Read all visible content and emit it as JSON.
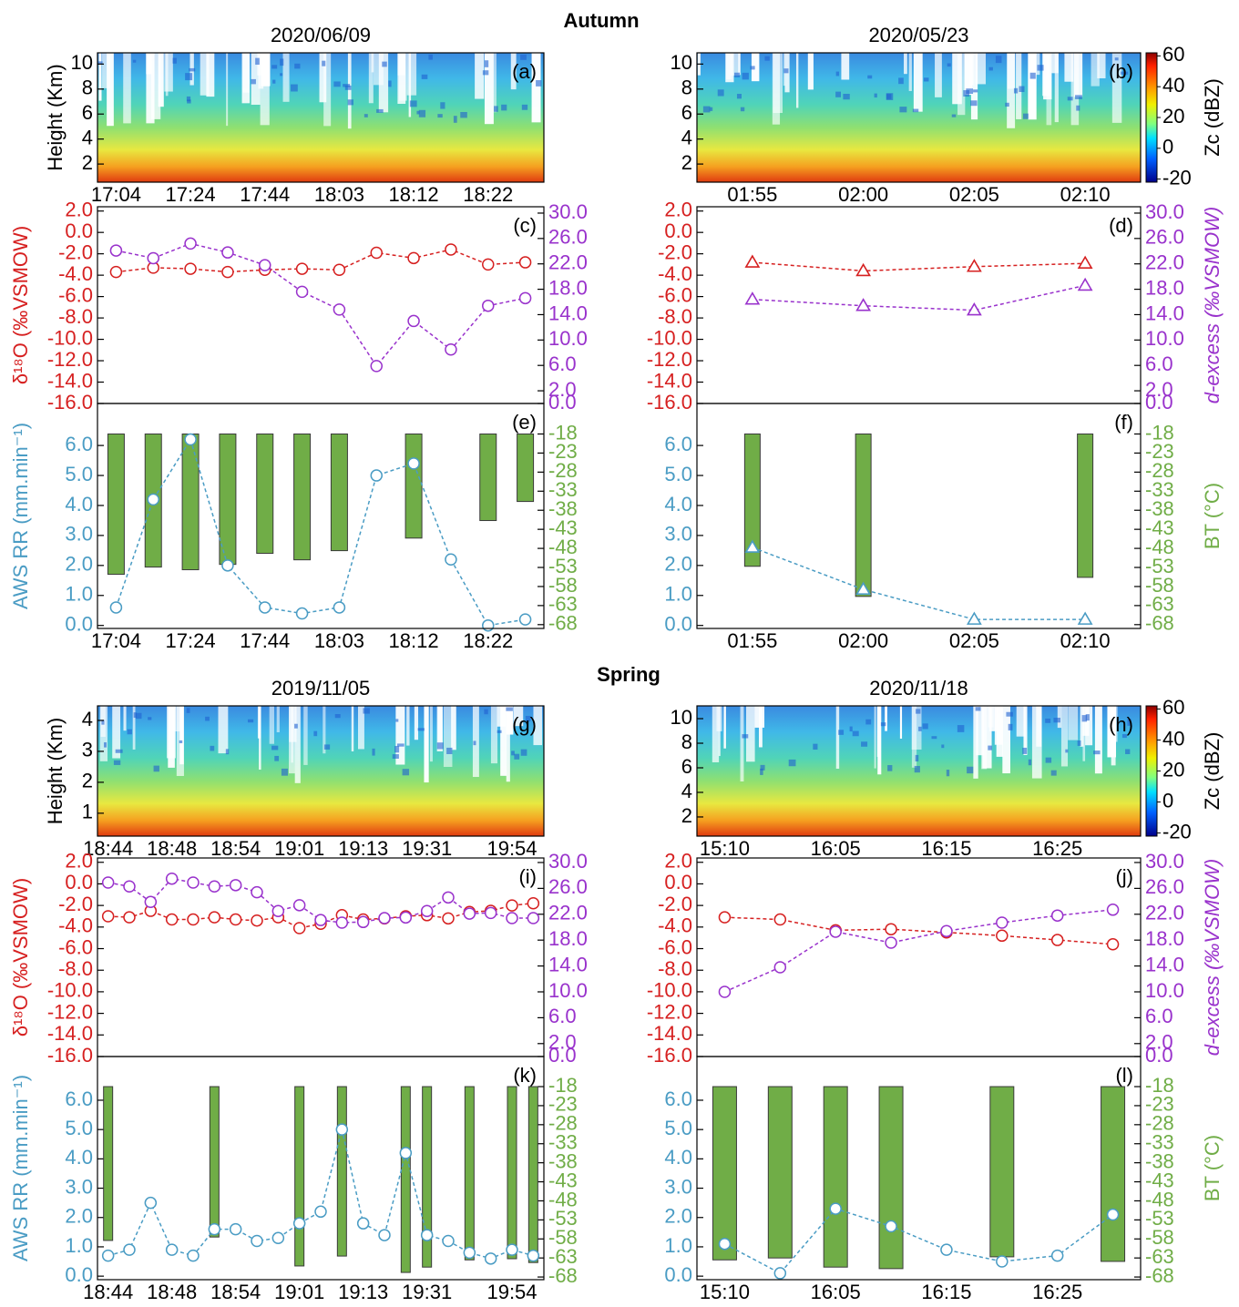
{
  "section_titles": [
    "Autumn",
    "Spring"
  ],
  "chart_data": [
    {
      "type": "radar",
      "panel": "(a)",
      "title": "2020/06/09",
      "y_label": "Height (Km)",
      "categories": [
        "17:04",
        null,
        "17:24",
        null,
        "17:44",
        null,
        "18:03",
        null,
        "18:12",
        null,
        "18:22",
        null
      ],
      "ylim": [
        0.55,
        10.9
      ],
      "yticks": [
        2,
        4,
        6,
        8,
        10
      ]
    },
    {
      "type": "radar",
      "panel": "(b)",
      "title": "2020/05/23",
      "categories": [
        "01:55",
        "02:00",
        "02:05",
        "02:10"
      ],
      "ylim": [
        0.55,
        10.9
      ],
      "yticks": [
        2,
        4,
        6,
        8,
        10
      ],
      "colorbar": {
        "label": "Zc (dBZ)",
        "lim": [
          -22,
          62
        ],
        "ticks": [
          60,
          40,
          20,
          0,
          -20
        ]
      }
    },
    {
      "type": "dual-line",
      "panel": "(c)",
      "y_label": "δ¹⁸O (‰VSMOW)",
      "ylim": [
        -16,
        2.4
      ],
      "yticks": [
        {
          "value": 2,
          "label": "2.0"
        },
        {
          "value": 0,
          "label": "0.0"
        },
        {
          "value": -2,
          "label": "-2.0"
        },
        {
          "value": -4,
          "label": "-4.0"
        },
        {
          "value": -6,
          "label": "-6.0"
        },
        {
          "value": -8,
          "label": "-8.0"
        },
        {
          "value": -10,
          "label": "-10.0"
        },
        {
          "value": -12,
          "label": "-12.0"
        },
        {
          "value": -14,
          "label": "-14.0"
        },
        {
          "value": -16,
          "label": "-16.0"
        }
      ],
      "y2lim": [
        0,
        31
      ],
      "y2ticks": [
        {
          "value": 30,
          "label": "30.0"
        },
        {
          "value": 26,
          "label": "26.0"
        },
        {
          "value": 22,
          "label": "22.0"
        },
        {
          "value": 18,
          "label": "18.0"
        },
        {
          "value": 14,
          "label": "14.0"
        },
        {
          "value": 10,
          "label": "10.0"
        },
        {
          "value": 6,
          "label": "6.0"
        },
        {
          "value": 2,
          "label": "2.0"
        },
        {
          "value": 0,
          "label": "0.0"
        }
      ],
      "series": [
        {
          "color": "#d62020",
          "marker": "circle",
          "values": [
            -3.7,
            -3.3,
            -3.4,
            -3.7,
            -3.5,
            -3.4,
            -3.5,
            -1.9,
            -2.4,
            -1.6,
            -3.0,
            -2.8
          ]
        },
        {
          "color": "#9932cc",
          "marker": "circle",
          "axis": "y2",
          "values": [
            24.1,
            22.9,
            25.2,
            23.8,
            21.8,
            17.6,
            14.8,
            5.9,
            13.0,
            8.5,
            15.4,
            16.6
          ]
        }
      ]
    },
    {
      "type": "dual-line",
      "panel": "(d)",
      "y2_label": "d-excess (‰VSMOW)",
      "ylim": [
        -16,
        2.4
      ],
      "yticks": [
        {
          "value": 2,
          "label": "2.0"
        },
        {
          "value": 0,
          "label": "0.0"
        },
        {
          "value": -2,
          "label": "-2.0"
        },
        {
          "value": -4,
          "label": "-4.0"
        },
        {
          "value": -6,
          "label": "-6.0"
        },
        {
          "value": -8,
          "label": "-8.0"
        },
        {
          "value": -10,
          "label": "-10.0"
        },
        {
          "value": -12,
          "label": "-12.0"
        },
        {
          "value": -14,
          "label": "-14.0"
        },
        {
          "value": -16,
          "label": "-16.0"
        }
      ],
      "y2lim": [
        0,
        31
      ],
      "y2ticks": [
        {
          "value": 30,
          "label": "30.0"
        },
        {
          "value": 26,
          "label": "26.0"
        },
        {
          "value": 22,
          "label": "22.0"
        },
        {
          "value": 18,
          "label": "18.0"
        },
        {
          "value": 14,
          "label": "14.0"
        },
        {
          "value": 10,
          "label": "10.0"
        },
        {
          "value": 6,
          "label": "6.0"
        },
        {
          "value": 2,
          "label": "2.0"
        },
        {
          "value": 0,
          "label": "0.0"
        }
      ],
      "series": [
        {
          "color": "#d62020",
          "marker": "triangle",
          "values": [
            -2.8,
            -3.6,
            -3.2,
            -2.9
          ]
        },
        {
          "color": "#9932cc",
          "marker": "triangle",
          "axis": "y2",
          "values": [
            16.4,
            15.4,
            14.7,
            18.6
          ]
        }
      ]
    },
    {
      "type": "bar-line",
      "panel": "(e)",
      "y_label": "AWS RR (mm.min⁻¹)",
      "categories": [
        "17:04",
        null,
        "17:24",
        null,
        "17:44",
        null,
        "18:03",
        null,
        "18:12",
        null,
        "18:22",
        null
      ],
      "ylim": [
        -0.1,
        7.4
      ],
      "yticks": [
        {
          "value": 0,
          "label": "0.0"
        },
        {
          "value": 1,
          "label": "1.0"
        },
        {
          "value": 2,
          "label": "2.0"
        },
        {
          "value": 3,
          "label": "3.0"
        },
        {
          "value": 4,
          "label": "4.0"
        },
        {
          "value": 5,
          "label": "5.0"
        },
        {
          "value": 6,
          "label": "6.0"
        }
      ],
      "y2lim": [
        -69,
        -10
      ],
      "y2ticks": [
        -18,
        -23,
        -28,
        -33,
        -38,
        -43,
        -48,
        -53,
        -58,
        -63,
        -68
      ],
      "series": [
        {
          "color": "#70ad47",
          "kind": "bar",
          "axis": "y2",
          "values": [
            -54.8,
            -52.9,
            -53.6,
            -52.2,
            -49.3,
            -51.0,
            -48.6,
            null,
            -45.3,
            null,
            -40.7,
            -35.7
          ]
        },
        {
          "color": "#4a9cc4",
          "kind": "line",
          "marker": "circle",
          "values": [
            0.6,
            4.2,
            6.2,
            2.0,
            0.6,
            0.4,
            0.6,
            5.0,
            5.4,
            2.2,
            0.0,
            0.2
          ]
        }
      ]
    },
    {
      "type": "bar-line",
      "panel": "(f)",
      "y2_label": "BT (°C)",
      "categories": [
        "01:55",
        "02:00",
        "02:05",
        "02:10"
      ],
      "ylim": [
        -0.1,
        7.4
      ],
      "yticks": [
        {
          "value": 0,
          "label": "0.0"
        },
        {
          "value": 1,
          "label": "1.0"
        },
        {
          "value": 2,
          "label": "2.0"
        },
        {
          "value": 3,
          "label": "3.0"
        },
        {
          "value": 4,
          "label": "4.0"
        },
        {
          "value": 5,
          "label": "5.0"
        },
        {
          "value": 6,
          "label": "6.0"
        }
      ],
      "y2lim": [
        -69,
        -10
      ],
      "y2ticks": [
        -18,
        -23,
        -28,
        -33,
        -38,
        -43,
        -48,
        -53,
        -58,
        -63,
        -68
      ],
      "series": [
        {
          "color": "#70ad47",
          "kind": "bar",
          "axis": "y2",
          "values": [
            -52.7,
            -60.6,
            null,
            -55.6
          ]
        },
        {
          "color": "#4a9cc4",
          "kind": "line",
          "marker": "triangle",
          "values": [
            2.6,
            1.2,
            0.2,
            0.2
          ]
        }
      ]
    },
    {
      "type": "radar",
      "panel": "(g)",
      "title": "2019/11/05",
      "y_label": "Height (Km)",
      "categories": [
        "18:44",
        null,
        null,
        "18:48",
        null,
        null,
        "18:54",
        null,
        null,
        "19:01",
        null,
        null,
        "19:13",
        null,
        null,
        "19:31",
        null,
        null,
        null,
        "19:54",
        null
      ],
      "ylim": [
        0.26,
        4.47
      ],
      "yticks": [
        1,
        2,
        3,
        4
      ]
    },
    {
      "type": "radar",
      "panel": "(h)",
      "title": "2020/11/18",
      "categories": [
        "15:10",
        null,
        "16:05",
        null,
        "16:15",
        null,
        "16:25",
        null
      ],
      "ylim": [
        0.44,
        11.04
      ],
      "yticks": [
        2,
        4,
        6,
        8,
        10
      ],
      "colorbar": {
        "label": "Zc (dBZ)",
        "lim": [
          -22,
          62
        ],
        "ticks": [
          60,
          40,
          20,
          0,
          -20
        ]
      }
    },
    {
      "type": "dual-line",
      "panel": "(i)",
      "y_label": "δ¹⁸O (‰VSMOW)",
      "ylim": [
        -16,
        2.4
      ],
      "yticks": [
        {
          "value": 2,
          "label": "2.0"
        },
        {
          "value": 0,
          "label": "0.0"
        },
        {
          "value": -2,
          "label": "-2.0"
        },
        {
          "value": -4,
          "label": "-4.0"
        },
        {
          "value": -6,
          "label": "-6.0"
        },
        {
          "value": -8,
          "label": "-8.0"
        },
        {
          "value": -10,
          "label": "-10.0"
        },
        {
          "value": -12,
          "label": "-12.0"
        },
        {
          "value": -14,
          "label": "-14.0"
        },
        {
          "value": -16,
          "label": "-16.0"
        }
      ],
      "y2lim": [
        0,
        30.7
      ],
      "y2ticks": [
        {
          "value": 30,
          "label": "30.0"
        },
        {
          "value": 26,
          "label": "26.0"
        },
        {
          "value": 22,
          "label": "22.0"
        },
        {
          "value": 18,
          "label": "18.0"
        },
        {
          "value": 14,
          "label": "14.0"
        },
        {
          "value": 10,
          "label": "10.0"
        },
        {
          "value": 6,
          "label": "6.0"
        },
        {
          "value": 2,
          "label": "2.0"
        },
        {
          "value": 0,
          "label": "0.0"
        }
      ],
      "series": [
        {
          "color": "#d62020",
          "marker": "circle",
          "values": [
            -3.0,
            -3.1,
            -2.5,
            -3.3,
            -3.3,
            -3.1,
            -3.3,
            -3.4,
            -3.1,
            -4.1,
            -3.7,
            -2.9,
            -3.3,
            -3.2,
            -3.0,
            -2.9,
            -3.2,
            -2.6,
            -2.5,
            -2.0,
            -1.8
          ]
        },
        {
          "color": "#9932cc",
          "marker": "circle",
          "axis": "y2",
          "values": [
            26.9,
            26.3,
            23.9,
            27.5,
            26.9,
            26.3,
            26.5,
            25.4,
            22.5,
            23.4,
            21.1,
            20.7,
            20.8,
            21.4,
            21.5,
            22.5,
            24.6,
            22.1,
            22.2,
            21.4,
            21.4
          ]
        }
      ]
    },
    {
      "type": "dual-line",
      "panel": "(j)",
      "y2_label": "d-excess (‰VSMOW)",
      "ylim": [
        -16,
        2.4
      ],
      "yticks": [
        {
          "value": 2,
          "label": "2.0"
        },
        {
          "value": 0,
          "label": "0.0"
        },
        {
          "value": -2,
          "label": "-2.0"
        },
        {
          "value": -4,
          "label": "-4.0"
        },
        {
          "value": -6,
          "label": "-6.0"
        },
        {
          "value": -8,
          "label": "-8.0"
        },
        {
          "value": -10,
          "label": "-10.0"
        },
        {
          "value": -12,
          "label": "-12.0"
        },
        {
          "value": -14,
          "label": "-14.0"
        },
        {
          "value": -16,
          "label": "-16.0"
        }
      ],
      "y2lim": [
        0,
        30.7
      ],
      "y2ticks": [
        {
          "value": 30,
          "label": "30.0"
        },
        {
          "value": 26,
          "label": "26.0"
        },
        {
          "value": 22,
          "label": "22.0"
        },
        {
          "value": 18,
          "label": "18.0"
        },
        {
          "value": 14,
          "label": "14.0"
        },
        {
          "value": 10,
          "label": "10.0"
        },
        {
          "value": 6,
          "label": "6.0"
        },
        {
          "value": 2,
          "label": "2.0"
        },
        {
          "value": 0,
          "label": "0.0"
        }
      ],
      "series": [
        {
          "color": "#d62020",
          "marker": "circle",
          "values": [
            -3.1,
            -3.3,
            -4.3,
            -4.2,
            -4.5,
            -4.8,
            -5.2,
            -5.6
          ]
        },
        {
          "color": "#9932cc",
          "marker": "circle",
          "axis": "y2",
          "values": [
            10.0,
            13.8,
            19.3,
            17.6,
            19.4,
            20.7,
            21.8,
            22.7
          ]
        }
      ]
    },
    {
      "type": "bar-line",
      "panel": "(k)",
      "y_label": "AWS RR (mm.min⁻¹)",
      "categories": [
        "18:44",
        null,
        null,
        "18:48",
        null,
        null,
        "18:54",
        null,
        null,
        "19:01",
        null,
        null,
        "19:13",
        null,
        null,
        "19:31",
        null,
        null,
        null,
        "19:54",
        null
      ],
      "ylim": [
        -0.12,
        7.49
      ],
      "yticks": [
        {
          "value": 0,
          "label": "0.0"
        },
        {
          "value": 1,
          "label": "1.0"
        },
        {
          "value": 2,
          "label": "2.0"
        },
        {
          "value": 3,
          "label": "3.0"
        },
        {
          "value": 4,
          "label": "4.0"
        },
        {
          "value": 5,
          "label": "5.0"
        },
        {
          "value": 6,
          "label": "6.0"
        }
      ],
      "y2lim": [
        -68.7,
        -10.1
      ],
      "y2ticks": [
        -18,
        -23,
        -28,
        -33,
        -38,
        -43,
        -48,
        -53,
        -58,
        -63,
        -68
      ],
      "series": [
        {
          "color": "#70ad47",
          "kind": "bar",
          "axis": "y2",
          "values": [
            -58.4,
            null,
            null,
            null,
            null,
            -57.5,
            null,
            null,
            null,
            -65.1,
            null,
            -62.5,
            null,
            null,
            -66.8,
            -65.4,
            null,
            -63.5,
            null,
            -63.2,
            -64.2
          ]
        },
        {
          "color": "#4a9cc4",
          "kind": "line",
          "marker": "circle",
          "values": [
            0.7,
            0.9,
            2.5,
            0.9,
            0.7,
            1.6,
            1.6,
            1.2,
            1.3,
            1.8,
            2.2,
            5.0,
            1.8,
            1.4,
            4.2,
            1.4,
            1.2,
            0.8,
            0.6,
            0.9,
            0.7
          ]
        }
      ]
    },
    {
      "type": "bar-line",
      "panel": "(l)",
      "y2_label": "BT (°C)",
      "categories": [
        "15:10",
        null,
        "16:05",
        null,
        "16:15",
        null,
        "16:25",
        null
      ],
      "ylim": [
        -0.12,
        7.49
      ],
      "yticks": [
        {
          "value": 0,
          "label": "0.0"
        },
        {
          "value": 1,
          "label": "1.0"
        },
        {
          "value": 2,
          "label": "2.0"
        },
        {
          "value": 3,
          "label": "3.0"
        },
        {
          "value": 4,
          "label": "4.0"
        },
        {
          "value": 5,
          "label": "5.0"
        },
        {
          "value": 6,
          "label": "6.0"
        }
      ],
      "y2lim": [
        -68.7,
        -10.1
      ],
      "y2ticks": [
        -18,
        -23,
        -28,
        -33,
        -38,
        -43,
        -48,
        -53,
        -58,
        -63,
        -68
      ],
      "series": [
        {
          "color": "#70ad47",
          "kind": "bar",
          "axis": "y2",
          "values": [
            -63.5,
            -63.0,
            -65.4,
            -65.8,
            null,
            -62.7,
            null,
            -63.9
          ]
        },
        {
          "color": "#4a9cc4",
          "kind": "line",
          "marker": "circle",
          "values": [
            1.1,
            0.1,
            2.3,
            1.7,
            0.9,
            0.5,
            0.7,
            2.1
          ]
        }
      ]
    }
  ]
}
